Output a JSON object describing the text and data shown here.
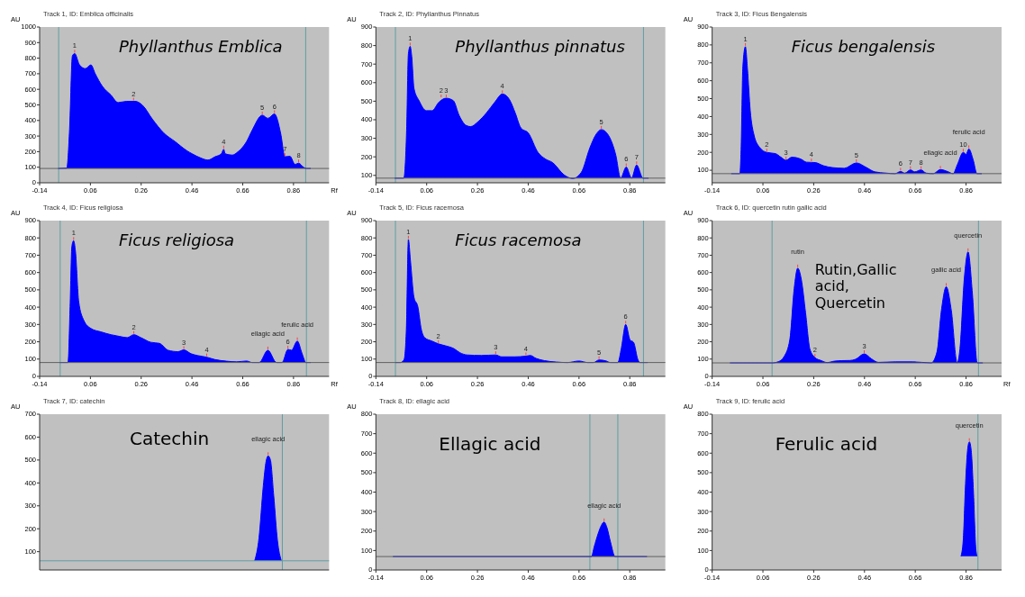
{
  "chart_data": [
    {
      "type": "area",
      "title": "Track 1, ID: Emblica officinalis",
      "xlabel": "Rf",
      "ylabel": "AU",
      "color": "#0000ff",
      "xlim": [
        -0.14,
        1.0
      ],
      "ylim": [
        0,
        1000
      ],
      "xticks": [
        -0.14,
        0.06,
        0.26,
        0.46,
        0.66,
        0.86
      ],
      "yticks": [
        0,
        100,
        200,
        300,
        400,
        500,
        600,
        700,
        800,
        900,
        1000
      ],
      "x": [
        -0.067,
        -0.033,
        -0.022,
        -0.011,
        -0.002,
        0.017,
        0.04,
        0.062,
        0.079,
        0.107,
        0.141,
        0.169,
        0.203,
        0.236,
        0.265,
        0.304,
        0.349,
        0.394,
        0.439,
        0.461,
        0.495,
        0.523,
        0.551,
        0.576,
        0.585,
        0.591,
        0.619,
        0.641,
        0.675,
        0.697,
        0.737,
        0.759,
        0.785,
        0.81,
        0.826,
        0.846,
        0.866,
        0.88,
        0.9,
        0.911,
        0.928
      ],
      "values": [
        92,
        94,
        345,
        814,
        830,
        757,
        733,
        757,
        700,
        620,
        563,
        515,
        523,
        523,
        498,
        409,
        320,
        264,
        207,
        186,
        159,
        146,
        167,
        186,
        215,
        186,
        178,
        199,
        264,
        337,
        434,
        414,
        442,
        312,
        167,
        170,
        118,
        126,
        99,
        92,
        92
      ],
      "ref_lines": [
        {
          "axis": "x",
          "value": -0.065,
          "color": "#5f9ea0"
        },
        {
          "axis": "x",
          "value": 0.908,
          "color": "#5f9ea0"
        },
        {
          "axis": "y",
          "value": 92,
          "color": "#606060"
        }
      ],
      "annotations": [
        "Phyllanthus Emblica",
        {
          "text": "1",
          "x": -0.002,
          "y": 830
        },
        {
          "text": "2",
          "x": 0.23,
          "y": 523
        },
        {
          "text": "4",
          "x": 0.585,
          "y": 215
        },
        {
          "text": "5",
          "x": 0.737,
          "y": 434
        },
        {
          "text": "6",
          "x": 0.785,
          "y": 442
        },
        {
          "text": "7",
          "x": 0.826,
          "y": 167
        },
        {
          "text": "8",
          "x": 0.88,
          "y": 126
        }
      ]
    },
    {
      "type": "area",
      "title": "Track 2, ID: Phyllanthus Pinnatus",
      "ylabel": "AU",
      "color": "#0000ff",
      "xlim": [
        -0.14,
        1.0
      ],
      "ylim": [
        60,
        900
      ],
      "xticks": [
        -0.14,
        0.06,
        0.26,
        0.46,
        0.66,
        0.86
      ],
      "yticks": [
        100,
        200,
        300,
        400,
        500,
        600,
        700,
        800,
        900
      ],
      "x": [
        -0.066,
        -0.03,
        -0.019,
        -0.012,
        -0.005,
        0.001,
        0.01,
        0.03,
        0.058,
        0.081,
        0.109,
        0.137,
        0.165,
        0.188,
        0.216,
        0.233,
        0.262,
        0.295,
        0.329,
        0.358,
        0.386,
        0.409,
        0.431,
        0.46,
        0.499,
        0.527,
        0.556,
        0.601,
        0.635,
        0.669,
        0.703,
        0.725,
        0.748,
        0.776,
        0.805,
        0.824,
        0.846,
        0.867,
        0.887,
        0.912,
        0.934
      ],
      "values": [
        85,
        85,
        343,
        756,
        796,
        743,
        569,
        503,
        449,
        449,
        496,
        516,
        503,
        423,
        369,
        363,
        389,
        436,
        496,
        539,
        509,
        436,
        356,
        329,
        223,
        189,
        169,
        103,
        83,
        116,
        249,
        316,
        347,
        316,
        209,
        85,
        145,
        85,
        156,
        85,
        85
      ],
      "ref_lines": [
        {
          "axis": "x",
          "value": -0.063,
          "color": "#5f9ea0"
        },
        {
          "axis": "x",
          "value": 0.914,
          "color": "#5f9ea0"
        },
        {
          "axis": "y",
          "value": 85,
          "color": "#606060"
        }
      ],
      "annotations": [
        "Phyllanthus pinnatus",
        {
          "text": "1",
          "x": -0.005,
          "y": 796
        },
        {
          "text": "2",
          "x": 0.117,
          "y": 516
        },
        {
          "text": "3",
          "x": 0.137,
          "y": 516
        },
        {
          "text": "4",
          "x": 0.358,
          "y": 539
        },
        {
          "text": "5",
          "x": 0.748,
          "y": 347
        },
        {
          "text": "6",
          "x": 0.846,
          "y": 145
        },
        {
          "text": "7",
          "x": 0.887,
          "y": 156
        }
      ]
    },
    {
      "type": "area",
      "title": "Track 3, ID: Ficus Bengalensis",
      "ylabel": "AU",
      "color": "#0000ff",
      "xlim": [
        -0.14,
        1.0
      ],
      "ylim": [
        30,
        900
      ],
      "xticks": [
        -0.14,
        0.06,
        0.26,
        0.46,
        0.66,
        0.86
      ],
      "yticks": [
        100,
        200,
        300,
        400,
        500,
        600,
        700,
        800,
        900
      ],
      "x": [
        -0.065,
        -0.031,
        -0.026,
        -0.019,
        -0.009,
        -0.001,
        0.01,
        0.025,
        0.047,
        0.075,
        0.109,
        0.131,
        0.151,
        0.174,
        0.21,
        0.232,
        0.266,
        0.299,
        0.333,
        0.38,
        0.428,
        0.468,
        0.501,
        0.546,
        0.58,
        0.602,
        0.619,
        0.641,
        0.658,
        0.683,
        0.703,
        0.731,
        0.759,
        0.787,
        0.809,
        0.826,
        0.849,
        0.86,
        0.871,
        0.888,
        0.903,
        0.922
      ],
      "values": [
        81,
        81,
        214,
        680,
        790,
        667,
        433,
        296,
        228,
        200,
        193,
        173,
        156,
        173,
        162,
        145,
        143,
        125,
        115,
        111,
        141,
        115,
        91,
        84,
        81,
        93,
        84,
        102,
        91,
        102,
        84,
        81,
        104,
        93,
        81,
        132,
        200,
        189,
        219,
        159,
        81,
        81
      ],
      "ref_lines": [
        {
          "axis": "y",
          "value": 81,
          "color": "#606060"
        }
      ],
      "annotations": [
        "Ficus bengalensis",
        {
          "text": "1",
          "x": -0.009,
          "y": 790
        },
        {
          "text": "2",
          "x": 0.075,
          "y": 200
        },
        {
          "text": "3",
          "x": 0.151,
          "y": 156
        },
        {
          "text": "4",
          "x": 0.251,
          "y": 145
        },
        {
          "text": "5",
          "x": 0.428,
          "y": 141
        },
        {
          "text": "6",
          "x": 0.602,
          "y": 93
        },
        {
          "text": "7",
          "x": 0.641,
          "y": 102
        },
        {
          "text": "8",
          "x": 0.683,
          "y": 102
        },
        {
          "text": "ellagic acid",
          "x": 0.759,
          "y": 104
        },
        {
          "text": "10",
          "x": 0.849,
          "y": 200
        },
        {
          "text": "ferulic acid",
          "x": 0.871,
          "y": 219
        }
      ]
    },
    {
      "type": "area",
      "title": "Track 4, ID: Ficus religiosa",
      "xlabel": "Rf",
      "ylabel": "AU",
      "color": "#0000ff",
      "xlim": [
        -0.14,
        1.0
      ],
      "ylim": [
        0,
        900
      ],
      "xticks": [
        -0.14,
        0.06,
        0.26,
        0.46,
        0.66,
        0.86
      ],
      "yticks": [
        0,
        100,
        200,
        300,
        400,
        500,
        600,
        700,
        800,
        900
      ],
      "x": [
        -0.061,
        -0.028,
        -0.02,
        -0.013,
        -0.006,
        0.001,
        0.014,
        0.034,
        0.062,
        0.102,
        0.141,
        0.175,
        0.205,
        0.231,
        0.259,
        0.298,
        0.332,
        0.366,
        0.405,
        0.428,
        0.456,
        0.484,
        0.518,
        0.551,
        0.596,
        0.636,
        0.675,
        0.697,
        0.725,
        0.759,
        0.793,
        0.815,
        0.838,
        0.852,
        0.875,
        0.894,
        0.909,
        0.928
      ],
      "values": [
        80,
        80,
        404,
        751,
        784,
        724,
        431,
        324,
        277,
        257,
        241,
        231,
        224,
        241,
        224,
        197,
        191,
        151,
        143,
        153,
        131,
        120,
        111,
        97,
        88,
        84,
        89,
        80,
        80,
        151,
        80,
        80,
        156,
        151,
        204,
        131,
        80,
        80
      ],
      "ref_lines": [
        {
          "axis": "x",
          "value": -0.059,
          "color": "#5f9ea0"
        },
        {
          "axis": "x",
          "value": 0.911,
          "color": "#5f9ea0"
        },
        {
          "axis": "y",
          "value": 80,
          "color": "#606060"
        }
      ],
      "annotations": [
        "Ficus  religiosa",
        {
          "text": "1",
          "x": -0.006,
          "y": 784
        },
        {
          "text": "2",
          "x": 0.231,
          "y": 241
        },
        {
          "text": "3",
          "x": 0.428,
          "y": 153
        },
        {
          "text": "4",
          "x": 0.518,
          "y": 111
        },
        {
          "text": "ellagic acid",
          "x": 0.759,
          "y": 151
        },
        {
          "text": "6",
          "x": 0.838,
          "y": 156
        },
        {
          "text": "ferulic acid",
          "x": 0.875,
          "y": 204
        }
      ]
    },
    {
      "type": "area",
      "title": "Track 5, ID: Ficus racemosa",
      "ylabel": "AU",
      "color": "#0000ff",
      "xlim": [
        -0.14,
        1.0
      ],
      "ylim": [
        0,
        900
      ],
      "xticks": [
        -0.14,
        0.06,
        0.26,
        0.46,
        0.66,
        0.86
      ],
      "yticks": [
        0,
        100,
        200,
        300,
        400,
        500,
        600,
        700,
        800,
        900
      ],
      "x": [
        -0.063,
        -0.043,
        -0.029,
        -0.02,
        -0.012,
        -0.004,
        0.01,
        0.025,
        0.039,
        0.052,
        0.081,
        0.106,
        0.134,
        0.168,
        0.191,
        0.219,
        0.276,
        0.332,
        0.355,
        0.406,
        0.451,
        0.468,
        0.491,
        0.524,
        0.57,
        0.615,
        0.66,
        0.694,
        0.717,
        0.739,
        0.767,
        0.784,
        0.813,
        0.827,
        0.844,
        0.861,
        0.875,
        0.892,
        0.9,
        0.931
      ],
      "values": [
        80,
        80,
        97,
        271,
        791,
        671,
        457,
        404,
        271,
        224,
        204,
        188,
        177,
        160,
        137,
        124,
        121,
        124,
        113,
        113,
        117,
        121,
        104,
        91,
        83,
        80,
        89,
        80,
        80,
        95,
        89,
        80,
        80,
        164,
        300,
        211,
        197,
        97,
        80,
        80
      ],
      "ref_lines": [
        {
          "axis": "x",
          "value": -0.063,
          "color": "#5f9ea0"
        },
        {
          "axis": "x",
          "value": 0.914,
          "color": "#5f9ea0"
        },
        {
          "axis": "y",
          "value": 80,
          "color": "#606060"
        }
      ],
      "annotations": [
        "Ficus racemosa",
        {
          "text": "1",
          "x": -0.012,
          "y": 791
        },
        {
          "text": "2",
          "x": 0.106,
          "y": 188
        },
        {
          "text": "3",
          "x": 0.332,
          "y": 124
        },
        {
          "text": "4",
          "x": 0.451,
          "y": 117
        },
        {
          "text": "5",
          "x": 0.739,
          "y": 95
        },
        {
          "text": "6",
          "x": 0.844,
          "y": 300
        }
      ]
    },
    {
      "type": "area",
      "title": "Track 6, ID: quercetin rutin gallic acid",
      "xlabel": "Rf",
      "ylabel": "AU",
      "color": "#0000ff",
      "xlim": [
        -0.14,
        1.0
      ],
      "ylim": [
        0,
        900
      ],
      "xticks": [
        -0.14,
        0.06,
        0.26,
        0.46,
        0.66,
        0.86
      ],
      "yticks": [
        0,
        100,
        200,
        300,
        400,
        500,
        600,
        700,
        800,
        900
      ],
      "x": [
        -0.07,
        0.099,
        0.121,
        0.144,
        0.166,
        0.183,
        0.197,
        0.211,
        0.228,
        0.245,
        0.265,
        0.29,
        0.313,
        0.341,
        0.369,
        0.403,
        0.425,
        0.459,
        0.487,
        0.515,
        0.583,
        0.65,
        0.723,
        0.746,
        0.763,
        0.782,
        0.802,
        0.825,
        0.836,
        0.853,
        0.868,
        0.885,
        0.904,
        0.926
      ],
      "values": [
        78,
        78,
        85,
        116,
        213,
        506,
        625,
        562,
        367,
        158,
        109,
        91,
        80,
        88,
        91,
        92,
        99,
        130,
        102,
        81,
        84,
        84,
        78,
        144,
        381,
        518,
        381,
        78,
        158,
        562,
        719,
        479,
        78,
        78
      ],
      "ref_lines": [
        {
          "axis": "x",
          "value": 0.096,
          "color": "#5f9ea0"
        },
        {
          "axis": "x",
          "value": 0.909,
          "color": "#5f9ea0"
        },
        {
          "axis": "y",
          "value": 78,
          "color": "#606060"
        }
      ],
      "annotations": [
        "Rutin,Gallic acid, Quercetin",
        {
          "text": "rutin",
          "x": 0.197,
          "y": 625
        },
        {
          "text": "2",
          "x": 0.265,
          "y": 109
        },
        {
          "text": "3",
          "x": 0.459,
          "y": 130
        },
        {
          "text": "gallic acid",
          "x": 0.782,
          "y": 518
        },
        {
          "text": "quercetin",
          "x": 0.868,
          "y": 719
        }
      ]
    },
    {
      "type": "area",
      "title": "Track 7, ID: catechin",
      "ylabel": "AU",
      "color": "#0000ff",
      "xlim": [
        -0.14,
        1.0
      ],
      "ylim": [
        20,
        700
      ],
      "yticks": [
        100,
        200,
        300,
        400,
        500,
        600,
        700
      ],
      "tick_labels": "y",
      "x": [
        0.707,
        0.724,
        0.741,
        0.752,
        0.76,
        0.769,
        0.782,
        0.797,
        0.812
      ],
      "values": [
        60,
        159,
        387,
        494,
        518,
        501,
        345,
        146,
        60
      ],
      "ref_lines": [
        {
          "axis": "x",
          "value": 0.816,
          "color": "#5f9ea0"
        },
        {
          "axis": "y",
          "value": 60,
          "color": "#5f9ea0"
        }
      ],
      "annotations": [
        "Catechin",
        {
          "text": "ellagic acid",
          "x": 0.76,
          "y": 518
        }
      ]
    },
    {
      "type": "area",
      "title": "Track 8, ID: ellagic acid",
      "ylabel": "AU",
      "color": "#0000ff",
      "xlim": [
        -0.14,
        1.0
      ],
      "ylim": [
        0,
        800
      ],
      "xticks": [
        -0.14,
        0.06,
        0.26,
        0.46,
        0.66,
        0.86
      ],
      "yticks": [
        0,
        100,
        200,
        300,
        400,
        500,
        600,
        700,
        800
      ],
      "x": [
        -0.073,
        0.709,
        0.72,
        0.735,
        0.748,
        0.759,
        0.77,
        0.784,
        0.802,
        0.928
      ],
      "values": [
        69,
        69,
        120,
        185,
        229,
        246,
        218,
        144,
        69,
        69
      ],
      "ref_lines": [
        {
          "axis": "x",
          "value": 0.703,
          "color": "#5f9ea0"
        },
        {
          "axis": "x",
          "value": 0.813,
          "color": "#5f9ea0"
        },
        {
          "axis": "y",
          "value": 69,
          "color": "#606060"
        }
      ],
      "annotations": [
        "Ellagic acid",
        {
          "text": "ellagic acid",
          "x": 0.759,
          "y": 246
        }
      ]
    },
    {
      "type": "area",
      "title": "Track 9, ID: ferulic acid",
      "ylabel": "AU",
      "color": "#0000ff",
      "xlim": [
        -0.14,
        1.0
      ],
      "ylim": [
        0,
        800
      ],
      "xticks": [
        -0.14,
        0.06,
        0.26,
        0.46,
        0.66,
        0.86
      ],
      "yticks": [
        0,
        100,
        200,
        300,
        400,
        500,
        600,
        700,
        800
      ],
      "x": [
        0.84,
        0.849,
        0.858,
        0.867,
        0.873,
        0.88,
        0.889,
        0.898,
        0.903
      ],
      "values": [
        71,
        153,
        441,
        627,
        658,
        619,
        407,
        119,
        71
      ],
      "ref_lines": [
        {
          "axis": "x",
          "value": 0.907,
          "color": "#5f9ea0"
        }
      ],
      "annotations": [
        "Ferulic acid",
        {
          "text": "quercetin",
          "x": 0.873,
          "y": 658
        }
      ]
    }
  ]
}
